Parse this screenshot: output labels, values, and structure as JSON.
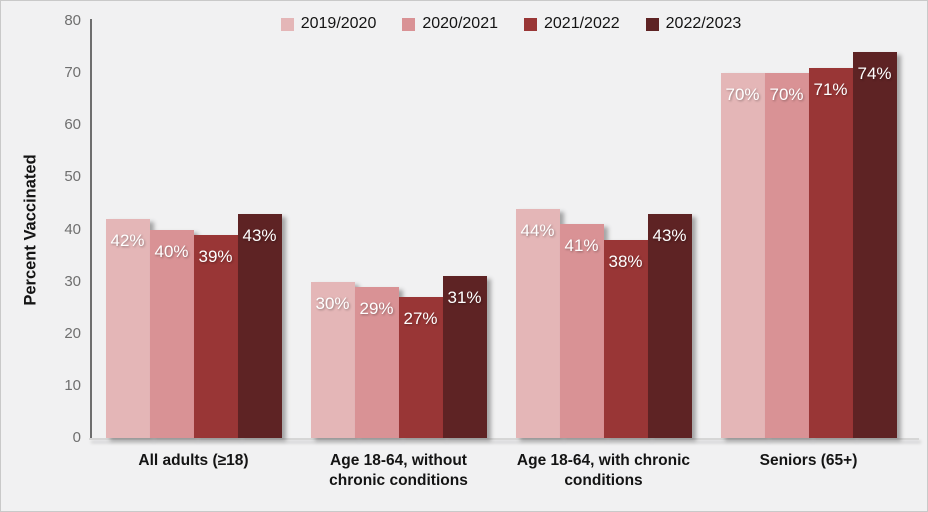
{
  "chart_data": {
    "type": "bar",
    "title": "",
    "xlabel": "",
    "ylabel": "Percent Vaccinated",
    "ylim": [
      0,
      80
    ],
    "yticks": [
      0,
      10,
      20,
      30,
      40,
      50,
      60,
      70,
      80
    ],
    "grid": false,
    "legend_position": "top-center",
    "value_suffix": "%",
    "data_label_color": "#ffffff",
    "categories": [
      "All adults (≥18)",
      "Age 18-64, without chronic conditions",
      "Age 18-64, with chronic conditions",
      "Seniors (65+)"
    ],
    "series": [
      {
        "name": "2019/2020",
        "color": "#e4b6b7",
        "values": [
          42,
          30,
          44,
          70
        ]
      },
      {
        "name": "2020/2021",
        "color": "#d99295",
        "values": [
          40,
          29,
          41,
          70
        ]
      },
      {
        "name": "2021/2022",
        "color": "#993636",
        "values": [
          39,
          27,
          38,
          71
        ]
      },
      {
        "name": "2022/2023",
        "color": "#5e2324",
        "values": [
          43,
          31,
          43,
          74
        ]
      }
    ]
  },
  "colors": {
    "background": "#f1f1f2",
    "frame_border": "#c9c9c9",
    "y_axis_line": "#6e6e6e",
    "x_axis_line": "#d6d6d6",
    "tick_text": "#6f6f6f",
    "label_text": "#141414"
  }
}
